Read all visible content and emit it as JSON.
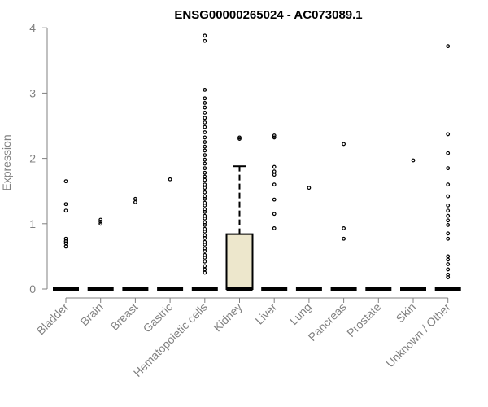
{
  "chart_data": {
    "type": "boxplot",
    "title": "ENSG00000265024 - AC073089.1",
    "ylabel": "Expression",
    "xlabel": "",
    "ylim": [
      0,
      4
    ],
    "yticks": [
      "0",
      "1",
      "2",
      "3",
      "4"
    ],
    "grid": false,
    "legend": "none",
    "categories": [
      "Bladder",
      "Brain",
      "Breast",
      "Gastric",
      "Hematopoietic cells",
      "Kidney",
      "Liver",
      "Lung",
      "Pancreas",
      "Prostate",
      "Skin",
      "Unknown / Other"
    ],
    "boxes": [
      {
        "q1": 0,
        "median": 0,
        "q3": 0,
        "whisker_low": 0,
        "whisker_high": 0,
        "outliers": [
          0.65,
          0.7,
          0.73,
          0.77,
          1.2,
          1.3,
          1.65
        ]
      },
      {
        "q1": 0,
        "median": 0,
        "q3": 0,
        "whisker_low": 0,
        "whisker_high": 0,
        "outliers": [
          1.0,
          1.03,
          1.06
        ]
      },
      {
        "q1": 0,
        "median": 0,
        "q3": 0,
        "whisker_low": 0,
        "whisker_high": 0,
        "outliers": [
          1.33,
          1.38
        ]
      },
      {
        "q1": 0,
        "median": 0,
        "q3": 0,
        "whisker_low": 0,
        "whisker_high": 0,
        "outliers": [
          1.68
        ]
      },
      {
        "q1": 0,
        "median": 0,
        "q3": 0,
        "whisker_low": 0,
        "whisker_high": 0,
        "outliers": [
          0.25,
          0.3,
          0.35,
          0.42,
          0.48,
          0.52,
          0.58,
          0.62,
          0.68,
          0.72,
          0.78,
          0.82,
          0.88,
          0.92,
          0.98,
          1.02,
          1.08,
          1.12,
          1.18,
          1.22,
          1.28,
          1.32,
          1.38,
          1.42,
          1.48,
          1.55,
          1.6,
          1.67,
          1.72,
          1.78,
          1.85,
          1.92,
          1.98,
          2.05,
          2.12,
          2.18,
          2.25,
          2.32,
          2.4,
          2.48,
          2.55,
          2.62,
          2.7,
          2.78,
          2.85,
          2.92,
          3.05,
          3.8,
          3.88
        ]
      },
      {
        "q1": 0,
        "median": 0,
        "q3": 0.84,
        "whisker_low": 0,
        "whisker_high": 1.88,
        "outliers": [
          2.3,
          2.32
        ]
      },
      {
        "q1": 0,
        "median": 0,
        "q3": 0,
        "whisker_low": 0,
        "whisker_high": 0,
        "outliers": [
          0.93,
          1.15,
          1.37,
          1.6,
          1.75,
          1.8,
          1.87,
          2.32,
          2.35
        ]
      },
      {
        "q1": 0,
        "median": 0,
        "q3": 0,
        "whisker_low": 0,
        "whisker_high": 0,
        "outliers": [
          1.55
        ]
      },
      {
        "q1": 0,
        "median": 0,
        "q3": 0,
        "whisker_low": 0,
        "whisker_high": 0,
        "outliers": [
          0.77,
          0.93,
          2.22
        ]
      },
      {
        "q1": 0,
        "median": 0,
        "q3": 0,
        "whisker_low": 0,
        "whisker_high": 0,
        "outliers": []
      },
      {
        "q1": 0,
        "median": 0,
        "q3": 0,
        "whisker_low": 0,
        "whisker_high": 0,
        "outliers": [
          1.97
        ]
      },
      {
        "q1": 0,
        "median": 0,
        "q3": 0,
        "whisker_low": 0,
        "whisker_high": 0,
        "outliers": [
          0.18,
          0.22,
          0.3,
          0.38,
          0.45,
          0.5,
          0.77,
          0.85,
          0.98,
          1.05,
          1.12,
          1.2,
          1.28,
          1.42,
          1.6,
          1.85,
          2.08,
          2.37,
          3.72
        ]
      }
    ],
    "box_fill": "#ede7cc",
    "colors": {
      "axis": "#808080",
      "title": "#000000",
      "marks": "#000000"
    }
  }
}
